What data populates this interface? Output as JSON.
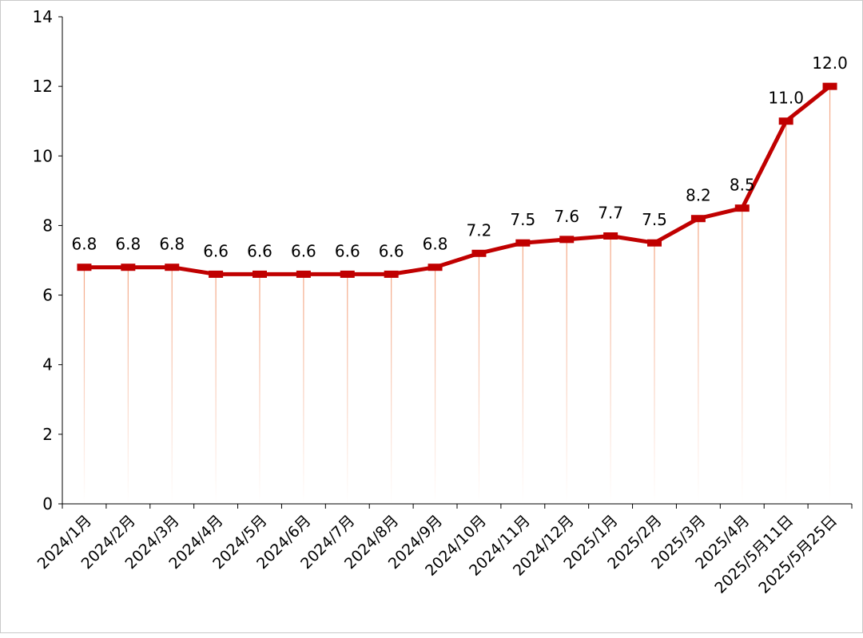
{
  "chart_data": {
    "type": "line",
    "title": "",
    "xlabel": "",
    "ylabel": "",
    "categories": [
      "2024/1月",
      "2024/2月",
      "2024/3月",
      "2024/4月",
      "2024/5月",
      "2024/6月",
      "2024/7月",
      "2024/8月",
      "2024/9月",
      "2024/10月",
      "2024/11月",
      "2024/12月",
      "2025/1月",
      "2025/2月",
      "2025/3月",
      "2025/4月",
      "2025/5月11日",
      "2025/5月25日"
    ],
    "series": [
      {
        "values": [
          6.8,
          6.8,
          6.8,
          6.6,
          6.6,
          6.6,
          6.6,
          6.6,
          6.8,
          7.2,
          7.5,
          7.6,
          7.7,
          7.5,
          8.2,
          8.5,
          11.0,
          12.0
        ]
      }
    ],
    "data_labels": [
      "6.8",
      "6.8",
      "6.8",
      "6.6",
      "6.6",
      "6.6",
      "6.6",
      "6.6",
      "6.8",
      "7.2",
      "7.5",
      "7.6",
      "7.7",
      "7.5",
      "8.2",
      "8.5",
      "11.0",
      "12.0"
    ],
    "ylim": [
      0,
      14
    ],
    "yticks": [
      0,
      2,
      4,
      6,
      8,
      10,
      12,
      14
    ],
    "grid": false,
    "legend": "none",
    "line_color": "#c00000",
    "drop_line_color": "#f4a582"
  }
}
